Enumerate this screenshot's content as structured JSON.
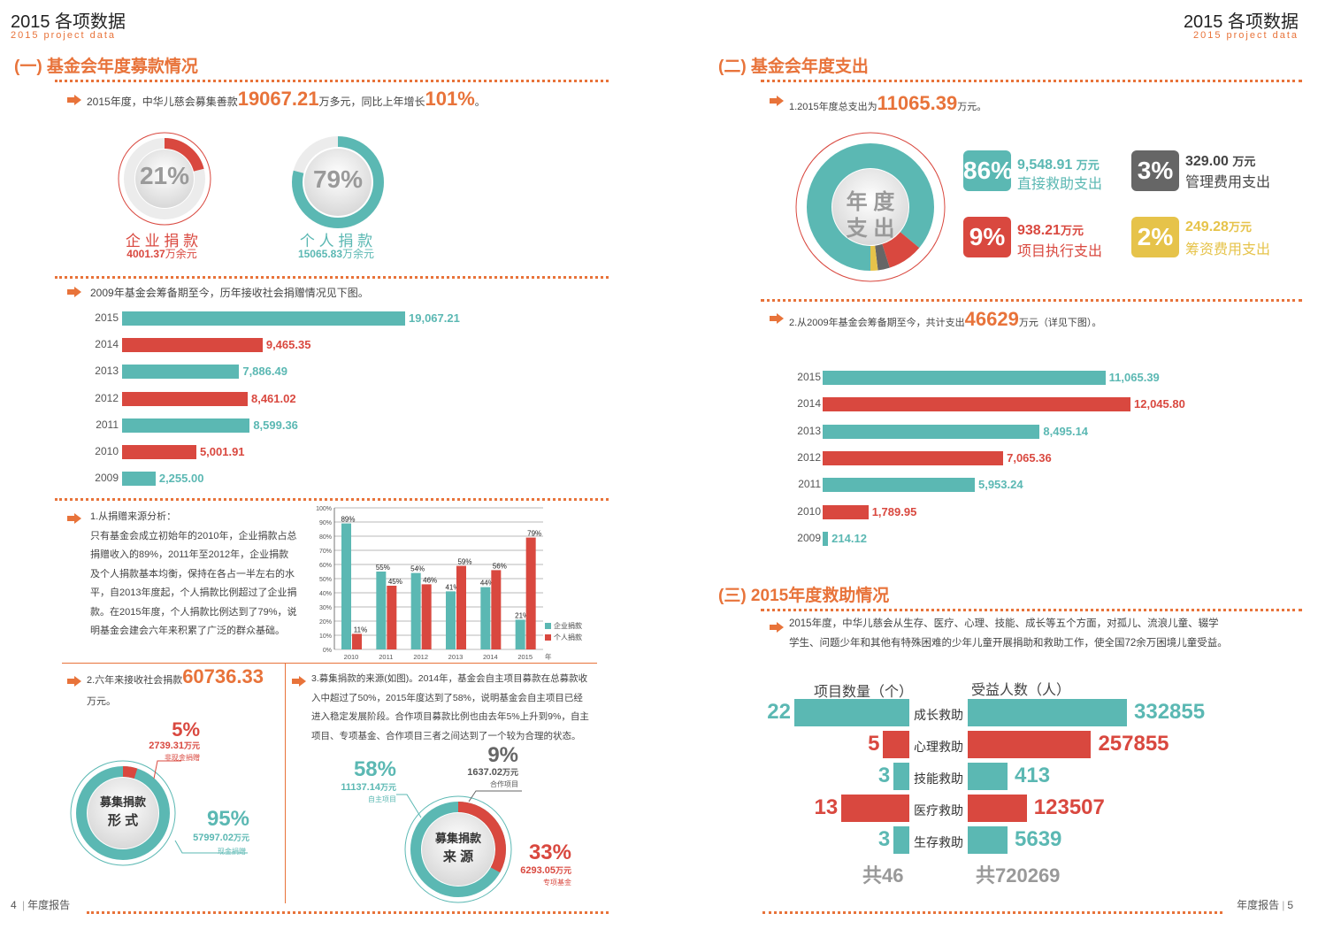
{
  "header": {
    "title": "2015 各项数据",
    "subtitle": "2015 project data"
  },
  "left": {
    "section_title": "(一) 基金会年度募款情况",
    "intro_prefix": "2015年度，中华儿慈会募集善款",
    "intro_amount": "19067.21",
    "intro_mid": "万多元，同比上年增长",
    "intro_growth": "101%",
    "intro_suffix": "。",
    "donut_corp": {
      "pct": "21%",
      "label": "企 业 捐 款",
      "amount": "4001.37",
      "unit": "万余元",
      "value": 0.21
    },
    "donut_personal": {
      "pct": "79%",
      "label": "个 人 捐 款",
      "amount": "15065.83",
      "unit": "万余元",
      "value": 0.79
    },
    "history_text": "2009年基金会筹备期至今，历年接收社会捐赠情况见下图。",
    "source_heading": "1.从捐赠来源分析：",
    "source_lines": [
      "只有基金会成立初始年的2010年，企业捐款占总",
      "捐赠收入的89%，2011年至2012年，企业捐款",
      "及个人捐款基本均衡，保持在各占一半左右的水",
      "平，自2013年度起，个人捐款比例超过了企业捐",
      "款。在2015年度，个人捐款比例达到了79%，说",
      "明基金会建会六年来积累了广泛的群众基础。"
    ],
    "six_year_prefix": "2.六年来接收社会捐款",
    "six_year_amount": "60736.33",
    "six_year_unit": "万元。",
    "form_donut": {
      "center1": "募集捐款",
      "center2": "形  式",
      "noncash_pct": "5%",
      "noncash_amount": "2739.31",
      "noncash_unit": "万元",
      "noncash_label": "非现金捐赠",
      "cash_pct": "95%",
      "cash_amount": "57997.02",
      "cash_unit": "万元",
      "cash_label": "现金捐赠"
    },
    "source_para_lines": [
      "3.募集捐款的来源(如图)。2014年，基金会自主项目募款在总募款收",
      "入中超过了50%，2015年度达到了58%，说明基金会自主项目已经",
      "进入稳定发展阶段。合作项目募款比例也由去年5%上升到9%，自主",
      "项目、专项基金、合作项目三者之间达到了一个较为合理的状态。"
    ],
    "source_donut": {
      "center1": "募集捐款",
      "center2": "来  源",
      "own_pct": "58%",
      "own_amount": "11137.14",
      "own_unit": "万元",
      "own_label": "自主项目",
      "coop_pct": "9%",
      "coop_amount": "1637.02",
      "coop_unit": "万元",
      "coop_label": "合作项目",
      "fund_pct": "33%",
      "fund_amount": "6293.05",
      "fund_unit": "万元",
      "fund_label": "专项基金"
    },
    "footer_page": "4",
    "footer_text": "年度报告"
  },
  "right": {
    "section2_title": "(二) 基金会年度支出",
    "exp_prefix": "1.2015年度总支出为",
    "exp_amount": "11065.39",
    "exp_unit": "万元。",
    "exp_center1": "年 度",
    "exp_center2": "支 出",
    "exp_items": [
      {
        "pct": "86%",
        "amount": "9,548.91",
        "unit": "万元",
        "label": "直接救助支出",
        "color": "#5bb8b3"
      },
      {
        "pct": "3%",
        "amount": "329.00",
        "unit": "万元",
        "label": "管理费用支出",
        "color": "#666666"
      },
      {
        "pct": "9%",
        "amount": "938.21",
        "unit": "万元",
        "label": "项目执行支出",
        "color": "#d9483f"
      },
      {
        "pct": "2%",
        "amount": "249.28",
        "unit": "万元",
        "label": "筹资费用支出",
        "color": "#e6c34a"
      }
    ],
    "total_prefix": "2.从2009年基金会筹备期至今，共计支出",
    "total_amount": "46629",
    "total_suffix": "万元（详见下图）。",
    "section3_title": "(三) 2015年度救助情况",
    "aid_lines": [
      "2015年度，中华儿慈会从生存、医疗、心理、技能、成长等五个方面，对孤儿、流浪儿童、辍学",
      "学生、问题少年和其他有特殊困难的少年儿童开展捐助和救助工作，使全国72余万困境儿童受益。"
    ],
    "aid_col_left": "项目数量（个）",
    "aid_col_right": "受益人数（人）",
    "aid_rows": [
      {
        "label": "成长救助",
        "count": "22",
        "people": "332855",
        "count_v": 22,
        "people_v": 332855,
        "color": "#5bb8b3"
      },
      {
        "label": "心理救助",
        "count": "5",
        "people": "257855",
        "count_v": 5,
        "people_v": 257855,
        "color": "#d9483f"
      },
      {
        "label": "技能救助",
        "count": "3",
        "people": "413",
        "count_v": 3,
        "people_v": 413,
        "color": "#5bb8b3"
      },
      {
        "label": "医疗救助",
        "count": "13",
        "people": "123507",
        "count_v": 13,
        "people_v": 123507,
        "color": "#d9483f"
      },
      {
        "label": "生存救助",
        "count": "3",
        "people": "5639",
        "count_v": 3,
        "people_v": 5639,
        "color": "#5bb8b3"
      }
    ],
    "aid_total_count": "共46",
    "aid_total_people": "共720269",
    "footer_page": "5",
    "footer_text": "年度报告"
  },
  "chart_data": [
    {
      "type": "bar",
      "orientation": "horizontal",
      "categories": [
        "2015",
        "2014",
        "2013",
        "2012",
        "2011",
        "2010",
        "2009"
      ],
      "values": [
        19067.21,
        9465.35,
        7886.49,
        8461.02,
        8599.36,
        5001.91,
        2255.0
      ],
      "labels": [
        "19,067.21",
        "9,465.35",
        "7,886.49",
        "8,461.02",
        "8,599.36",
        "5,001.91",
        "2,255.00"
      ],
      "colors": [
        "#5bb8b3",
        "#d9483f",
        "#5bb8b3",
        "#d9483f",
        "#5bb8b3",
        "#d9483f",
        "#5bb8b3"
      ],
      "xlim": [
        0,
        19067.21
      ]
    },
    {
      "type": "bar",
      "categories": [
        "2010",
        "2011",
        "2012",
        "2013",
        "2014",
        "2015"
      ],
      "series": [
        {
          "name": "企业捐款",
          "values": [
            89,
            55,
            54,
            41,
            44,
            21
          ],
          "labels": [
            "89%",
            "55%",
            "54%",
            "41%",
            "44%",
            "21%"
          ],
          "color": "#5bb8b3"
        },
        {
          "name": "个人捐款",
          "values": [
            11,
            45,
            46,
            59,
            56,
            79
          ],
          "labels": [
            "11%",
            "45%",
            "46%",
            "59%",
            "56%",
            "79%"
          ],
          "color": "#d9483f"
        }
      ],
      "xunit": "年",
      "yticks": [
        "0%",
        "10%",
        "20%",
        "30%",
        "40%",
        "50%",
        "60%",
        "70%",
        "80%",
        "90%",
        "100%"
      ],
      "ylim": [
        0,
        100
      ],
      "grid": true,
      "legend": "bottom-right"
    },
    {
      "type": "bar",
      "orientation": "horizontal",
      "categories": [
        "2015",
        "2014",
        "2013",
        "2012",
        "2011",
        "2010",
        "2009"
      ],
      "values": [
        11065.39,
        12045.8,
        8495.14,
        7065.36,
        5953.24,
        1789.95,
        214.12
      ],
      "labels": [
        "11,065.39",
        "12,045.80",
        "8,495.14",
        "7,065.36",
        "5,953.24",
        "1,789.95",
        "214.12"
      ],
      "colors": [
        "#5bb8b3",
        "#d9483f",
        "#5bb8b3",
        "#d9483f",
        "#5bb8b3",
        "#d9483f",
        "#5bb8b3"
      ],
      "xlim": [
        0,
        12045.8
      ]
    }
  ]
}
